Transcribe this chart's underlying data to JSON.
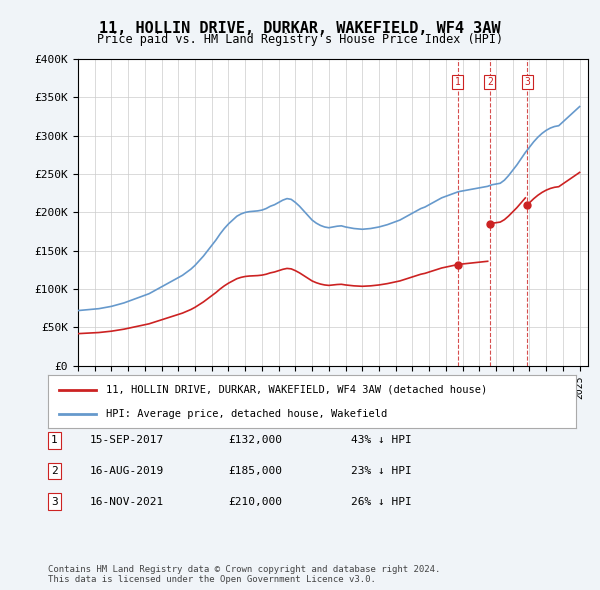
{
  "title": "11, HOLLIN DRIVE, DURKAR, WAKEFIELD, WF4 3AW",
  "subtitle": "Price paid vs. HM Land Registry's House Price Index (HPI)",
  "ylim": [
    0,
    400000
  ],
  "yticks": [
    0,
    50000,
    100000,
    150000,
    200000,
    250000,
    300000,
    350000,
    400000
  ],
  "background_color": "#f0f4f8",
  "plot_bg_color": "#ffffff",
  "hpi_color": "#6699cc",
  "price_color": "#cc2222",
  "sale_date_nums": [
    2017.708,
    2019.625,
    2021.875
  ],
  "sale_prices": [
    132000,
    185000,
    210000
  ],
  "sale_labels": [
    "1",
    "2",
    "3"
  ],
  "legend_label_price": "11, HOLLIN DRIVE, DURKAR, WAKEFIELD, WF4 3AW (detached house)",
  "legend_label_hpi": "HPI: Average price, detached house, Wakefield",
  "table_rows": [
    [
      "1",
      "15-SEP-2017",
      "£132,000",
      "43% ↓ HPI"
    ],
    [
      "2",
      "16-AUG-2019",
      "£185,000",
      "23% ↓ HPI"
    ],
    [
      "3",
      "16-NOV-2021",
      "£210,000",
      "26% ↓ HPI"
    ]
  ],
  "footnote": "Contains HM Land Registry data © Crown copyright and database right 2024.\nThis data is licensed under the Open Government Licence v3.0.",
  "hpi_x": [
    1995.0,
    1995.25,
    1995.5,
    1995.75,
    1996.0,
    1996.25,
    1996.5,
    1996.75,
    1997.0,
    1997.25,
    1997.5,
    1997.75,
    1998.0,
    1998.25,
    1998.5,
    1998.75,
    1999.0,
    1999.25,
    1999.5,
    1999.75,
    2000.0,
    2000.25,
    2000.5,
    2000.75,
    2001.0,
    2001.25,
    2001.5,
    2001.75,
    2002.0,
    2002.25,
    2002.5,
    2002.75,
    2003.0,
    2003.25,
    2003.5,
    2003.75,
    2004.0,
    2004.25,
    2004.5,
    2004.75,
    2005.0,
    2005.25,
    2005.5,
    2005.75,
    2006.0,
    2006.25,
    2006.5,
    2006.75,
    2007.0,
    2007.25,
    2007.5,
    2007.75,
    2008.0,
    2008.25,
    2008.5,
    2008.75,
    2009.0,
    2009.25,
    2009.5,
    2009.75,
    2010.0,
    2010.25,
    2010.5,
    2010.75,
    2011.0,
    2011.25,
    2011.5,
    2011.75,
    2012.0,
    2012.25,
    2012.5,
    2012.75,
    2013.0,
    2013.25,
    2013.5,
    2013.75,
    2014.0,
    2014.25,
    2014.5,
    2014.75,
    2015.0,
    2015.25,
    2015.5,
    2015.75,
    2016.0,
    2016.25,
    2016.5,
    2016.75,
    2017.0,
    2017.25,
    2017.5,
    2017.75,
    2018.0,
    2018.25,
    2018.5,
    2018.75,
    2019.0,
    2019.25,
    2019.5,
    2019.75,
    2020.0,
    2020.25,
    2020.5,
    2020.75,
    2021.0,
    2021.25,
    2021.5,
    2021.75,
    2022.0,
    2022.25,
    2022.5,
    2022.75,
    2023.0,
    2023.25,
    2023.5,
    2023.75,
    2024.0,
    2024.25,
    2024.5,
    2024.75,
    2025.0
  ],
  "hpi_y": [
    72000,
    72500,
    73000,
    73500,
    74000,
    74500,
    75500,
    76500,
    77500,
    79000,
    80500,
    82000,
    84000,
    86000,
    88000,
    90000,
    92000,
    94000,
    97000,
    100000,
    103000,
    106000,
    109000,
    112000,
    115000,
    118000,
    122000,
    126000,
    131000,
    137000,
    143000,
    150000,
    157000,
    164000,
    172000,
    179000,
    185000,
    190000,
    195000,
    198000,
    200000,
    201000,
    201500,
    202000,
    203000,
    205000,
    208000,
    210000,
    213000,
    216000,
    218000,
    217000,
    213000,
    208000,
    202000,
    196000,
    190000,
    186000,
    183000,
    181000,
    180000,
    181000,
    182000,
    182500,
    181000,
    180000,
    179000,
    178500,
    178000,
    178500,
    179000,
    180000,
    181000,
    182500,
    184000,
    186000,
    188000,
    190000,
    193000,
    196000,
    199000,
    202000,
    205000,
    207000,
    210000,
    213000,
    216000,
    219000,
    221000,
    223000,
    225000,
    227000,
    228000,
    229000,
    230000,
    231000,
    232000,
    233000,
    234000,
    236000,
    237000,
    238000,
    242000,
    248000,
    255000,
    262000,
    270000,
    278000,
    285000,
    292000,
    298000,
    303000,
    307000,
    310000,
    312000,
    313000,
    318000,
    323000,
    328000,
    333000,
    338000
  ]
}
